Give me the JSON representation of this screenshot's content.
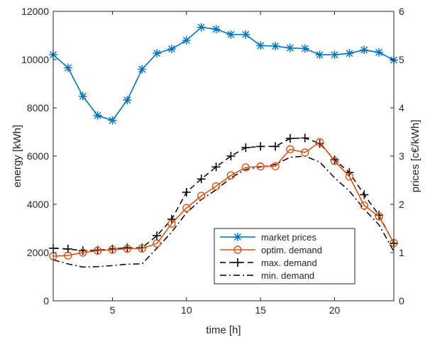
{
  "chart_data": {
    "type": "line",
    "title": "",
    "xlabel": "time [h]",
    "ylabel_left": "energy [kWh]",
    "ylabel_right": "prices [c€/kWh]",
    "xlim": [
      1,
      24
    ],
    "ylim_left": [
      0,
      12000
    ],
    "ylim_right": [
      0,
      6
    ],
    "xticks": [
      5,
      10,
      15,
      20
    ],
    "yticks_left": [
      0,
      2000,
      4000,
      6000,
      8000,
      10000,
      12000
    ],
    "yticks_right": [
      0,
      1,
      2,
      3,
      4,
      5,
      6
    ],
    "grid": false,
    "legend_position": "bottom-right",
    "x": [
      1,
      2,
      3,
      4,
      5,
      6,
      7,
      8,
      9,
      10,
      11,
      12,
      13,
      14,
      15,
      16,
      17,
      18,
      19,
      20,
      21,
      22,
      23,
      24
    ],
    "series": [
      {
        "name": "market prices",
        "axis": "right",
        "color": "#0072BD",
        "marker": "asterisk",
        "line": "solid",
        "values": [
          5.1,
          4.83,
          4.24,
          3.84,
          3.74,
          4.16,
          4.8,
          5.13,
          5.22,
          5.4,
          5.67,
          5.63,
          5.52,
          5.52,
          5.29,
          5.28,
          5.24,
          5.23,
          5.1,
          5.1,
          5.13,
          5.2,
          5.15,
          4.99
        ]
      },
      {
        "name": "optim. demand",
        "axis": "left",
        "color": "#D95319",
        "marker": "circle",
        "line": "solid",
        "values": [
          1850,
          1880,
          2000,
          2080,
          2120,
          2160,
          2170,
          2380,
          3200,
          3850,
          4350,
          4750,
          5200,
          5530,
          5570,
          5580,
          6280,
          6150,
          6580,
          5800,
          5150,
          3950,
          3500,
          2400
        ]
      },
      {
        "name": "max. demand",
        "axis": "left",
        "color": "#000000",
        "marker": "plus",
        "line": "dashed",
        "values": [
          2180,
          2150,
          2080,
          2100,
          2150,
          2200,
          2200,
          2700,
          3380,
          4500,
          5050,
          5550,
          6000,
          6350,
          6400,
          6400,
          6730,
          6750,
          6520,
          5850,
          5320,
          4400,
          3550,
          2380
        ]
      },
      {
        "name": "min. demand",
        "axis": "left",
        "color": "#000000",
        "marker": "none",
        "line": "dashdot",
        "values": [
          1700,
          1530,
          1400,
          1420,
          1460,
          1520,
          1530,
          2180,
          2850,
          3650,
          4200,
          4600,
          5100,
          5450,
          5550,
          5650,
          5950,
          6000,
          5750,
          5100,
          4550,
          3800,
          3150,
          2050
        ]
      }
    ]
  }
}
